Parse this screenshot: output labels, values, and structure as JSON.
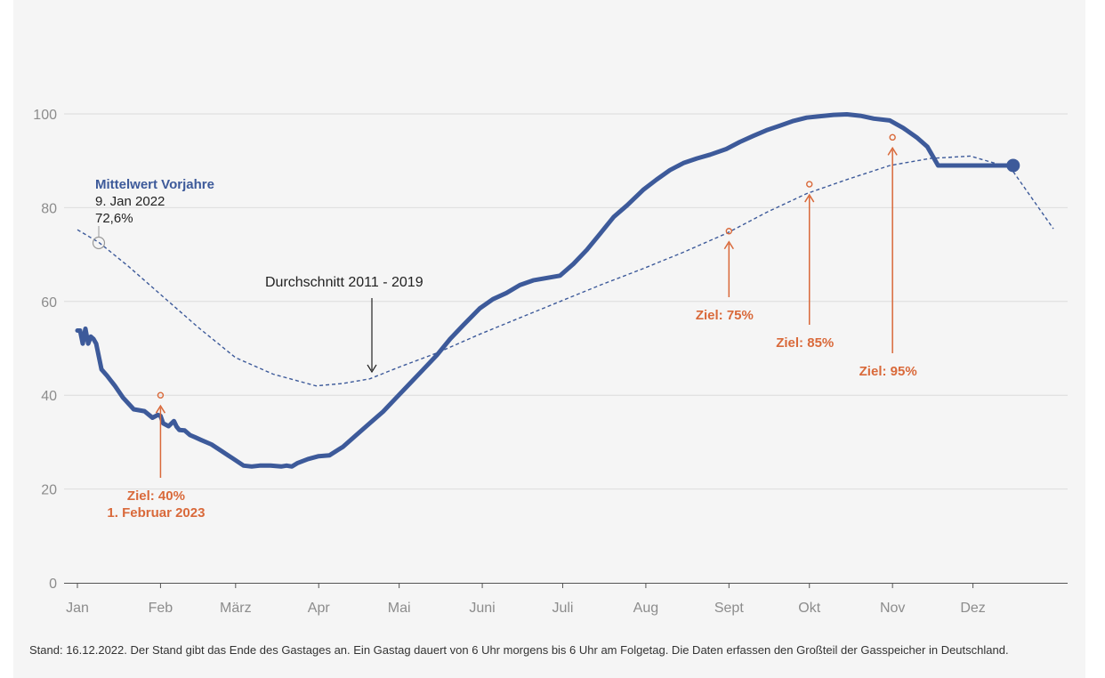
{
  "chart_data": {
    "type": "line",
    "ylim": [
      0,
      100
    ],
    "y_ticks": [
      "0",
      "20",
      "40",
      "60",
      "80",
      "100"
    ],
    "x_ticks": [
      "Jan",
      "Feb",
      "März",
      "Apr",
      "Mai",
      "Juni",
      "Juli",
      "Aug",
      "Sept",
      "Okt",
      "Nov",
      "Dez"
    ],
    "grid": "horizontal",
    "colors": {
      "current": "#3d5a9a",
      "average": "#3d5a9a",
      "target": "#d9693a",
      "grid": "#dcdcdc"
    },
    "series": [
      {
        "key": "current_2022",
        "x": [
          "2022-01-01",
          "2022-01-02",
          "2022-01-03",
          "2022-01-04",
          "2022-01-05",
          "2022-01-06",
          "2022-01-07",
          "2022-01-08",
          "2022-01-10",
          "2022-01-12",
          "2022-01-15",
          "2022-01-18",
          "2022-01-22",
          "2022-01-26",
          "2022-01-29",
          "2022-01-31",
          "2022-02-01",
          "2022-02-02",
          "2022-02-04",
          "2022-02-06",
          "2022-02-07",
          "2022-02-08",
          "2022-02-10",
          "2022-02-12",
          "2022-02-14",
          "2022-02-16",
          "2022-02-20",
          "2022-02-24",
          "2022-02-28",
          "2022-03-04",
          "2022-03-07",
          "2022-03-10",
          "2022-03-14",
          "2022-03-18",
          "2022-03-20",
          "2022-03-22",
          "2022-03-24",
          "2022-03-28",
          "2022-04-01",
          "2022-04-05",
          "2022-04-10",
          "2022-04-15",
          "2022-04-20",
          "2022-04-25",
          "2022-04-30",
          "2022-05-05",
          "2022-05-10",
          "2022-05-15",
          "2022-05-20",
          "2022-05-25",
          "2022-05-31",
          "2022-06-05",
          "2022-06-10",
          "2022-06-15",
          "2022-06-20",
          "2022-06-25",
          "2022-06-30",
          "2022-07-05",
          "2022-07-10",
          "2022-07-15",
          "2022-07-20",
          "2022-07-25",
          "2022-07-31",
          "2022-08-05",
          "2022-08-10",
          "2022-08-15",
          "2022-08-20",
          "2022-08-25",
          "2022-08-31",
          "2022-09-05",
          "2022-09-10",
          "2022-09-15",
          "2022-09-20",
          "2022-09-25",
          "2022-09-30",
          "2022-10-05",
          "2022-10-10",
          "2022-10-15",
          "2022-10-20",
          "2022-10-25",
          "2022-10-31",
          "2022-11-05",
          "2022-11-10",
          "2022-11-14",
          "2022-11-18",
          "2022-11-22",
          "2022-11-26",
          "2022-11-30",
          "2022-12-04",
          "2022-12-08",
          "2022-12-12",
          "2022-12-16"
        ],
        "values": [
          53.8,
          53.8,
          51.0,
          54.2,
          51.0,
          52.5,
          52.0,
          51.0,
          45.5,
          44.2,
          42.0,
          39.5,
          37.0,
          36.6,
          35.2,
          35.8,
          35.6,
          34.0,
          33.4,
          34.5,
          33.3,
          32.6,
          32.5,
          31.5,
          31.0,
          30.5,
          29.5,
          28.0,
          26.5,
          25.0,
          24.8,
          25.0,
          25.0,
          24.8,
          25.0,
          24.8,
          25.5,
          26.4,
          27.0,
          27.2,
          29.0,
          31.5,
          34.0,
          36.5,
          39.5,
          42.5,
          45.5,
          48.5,
          52.0,
          55.0,
          58.5,
          60.5,
          61.8,
          63.5,
          64.5,
          65.0,
          65.5,
          68.0,
          71.0,
          74.5,
          78.0,
          80.5,
          83.8,
          86.0,
          88.0,
          89.5,
          90.5,
          91.3,
          92.5,
          94.0,
          95.3,
          96.5,
          97.5,
          98.5,
          99.2,
          99.5,
          99.8,
          99.9,
          99.6,
          99.0,
          98.6,
          97.0,
          95.0,
          93.0,
          89.0,
          89.0,
          89.0,
          89.0,
          89.0,
          89.0,
          89.0,
          89.0
        ]
      },
      {
        "key": "avg_2011_2019",
        "x": [
          "2022-01-01",
          "2022-01-09",
          "2022-01-20",
          "2022-02-01",
          "2022-02-15",
          "2022-03-01",
          "2022-03-15",
          "2022-03-31",
          "2022-04-10",
          "2022-04-20",
          "2022-05-01",
          "2022-05-15",
          "2022-05-31",
          "2022-06-15",
          "2022-06-30",
          "2022-07-15",
          "2022-07-31",
          "2022-08-15",
          "2022-08-31",
          "2022-09-15",
          "2022-09-30",
          "2022-10-15",
          "2022-10-31",
          "2022-11-15",
          "2022-11-30",
          "2022-12-15",
          "2022-12-31"
        ],
        "values": [
          75.3,
          72.6,
          67.5,
          61.5,
          54.5,
          48.0,
          44.5,
          42.0,
          42.5,
          43.5,
          46.0,
          49.0,
          53.0,
          56.5,
          60.0,
          63.5,
          67.0,
          70.5,
          74.5,
          79.0,
          83.0,
          86.0,
          89.0,
          90.5,
          91.0,
          88.5,
          75.5
        ]
      }
    ],
    "targets": [
      {
        "date": "2022-11-01",
        "value": 95,
        "label": "Ziel: 95%"
      },
      {
        "date": "2022-10-01",
        "value": 85,
        "label": "Ziel: 85%"
      },
      {
        "date": "2022-09-01",
        "value": 75,
        "label": "Ziel: 75%"
      },
      {
        "date": "2022-02-01",
        "value": 40,
        "label": "Ziel: 40%",
        "sublabel": "1. Februar 2023"
      }
    ],
    "annotations": {
      "mittelwert_title": "Mittelwert Vorjahre",
      "mittelwert_date": "9. Jan 2022",
      "mittelwert_value": "72,6%",
      "average_label": "Durchschnitt 2011 - 2019"
    },
    "footnote": "Stand: 16.12.2022. Der Stand gibt das Ende des Gastages an. Ein Gastag dauert von 6 Uhr morgens bis 6 Uhr am Folgetag. Die Daten erfassen den Großteil der Gasspeicher in Deutschland."
  }
}
